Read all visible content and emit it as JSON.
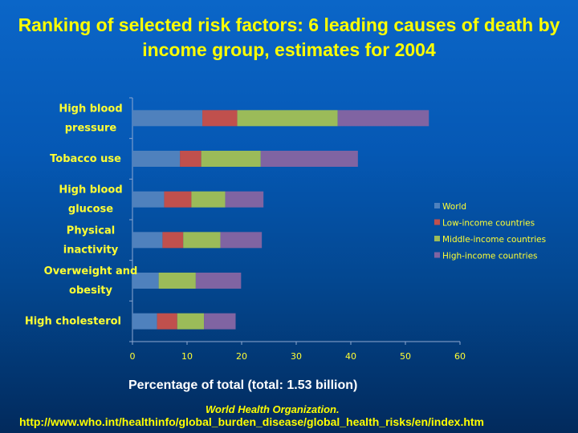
{
  "chart_data": {
    "type": "bar",
    "orientation": "horizontal",
    "stacked": true,
    "title": "Ranking of selected risk factors: 6 leading causes of death by income group, estimates for 2004",
    "categories": [
      [
        "High blood",
        "pressure"
      ],
      [
        "Tobacco use"
      ],
      [
        "High blood",
        "glucose"
      ],
      [
        "Physical",
        "inactivity"
      ],
      [
        "Overweight and",
        "obesity"
      ],
      [
        "High cholesterol"
      ]
    ],
    "series": [
      {
        "name": "World",
        "color": "#4f81bd",
        "values": [
          12.8,
          8.7,
          5.8,
          5.5,
          4.8,
          4.5
        ]
      },
      {
        "name": "Low-income countries",
        "color": "#c0504d",
        "values": [
          6.4,
          3.9,
          5.0,
          3.8,
          0,
          3.7
        ]
      },
      {
        "name": "Middle-income countries",
        "color": "#9bbb59",
        "values": [
          18.4,
          10.9,
          6.2,
          6.8,
          6.8,
          4.9
        ]
      },
      {
        "name": "High-income countries",
        "color": "#8064a2",
        "values": [
          16.7,
          17.8,
          7.0,
          7.6,
          8.3,
          5.8
        ]
      }
    ],
    "xlabel": "Percentage of total (total: 1.53 billion)",
    "xlim": [
      0,
      60
    ],
    "xticks": [
      "0",
      "10",
      "20",
      "30",
      "40",
      "50",
      "60"
    ],
    "legend": "right",
    "grid": false
  },
  "source": {
    "org": "World Health Organization.",
    "url": "http://www.who.int/healthinfo/global_burden_disease/global_health_risks/en/index.htm"
  }
}
